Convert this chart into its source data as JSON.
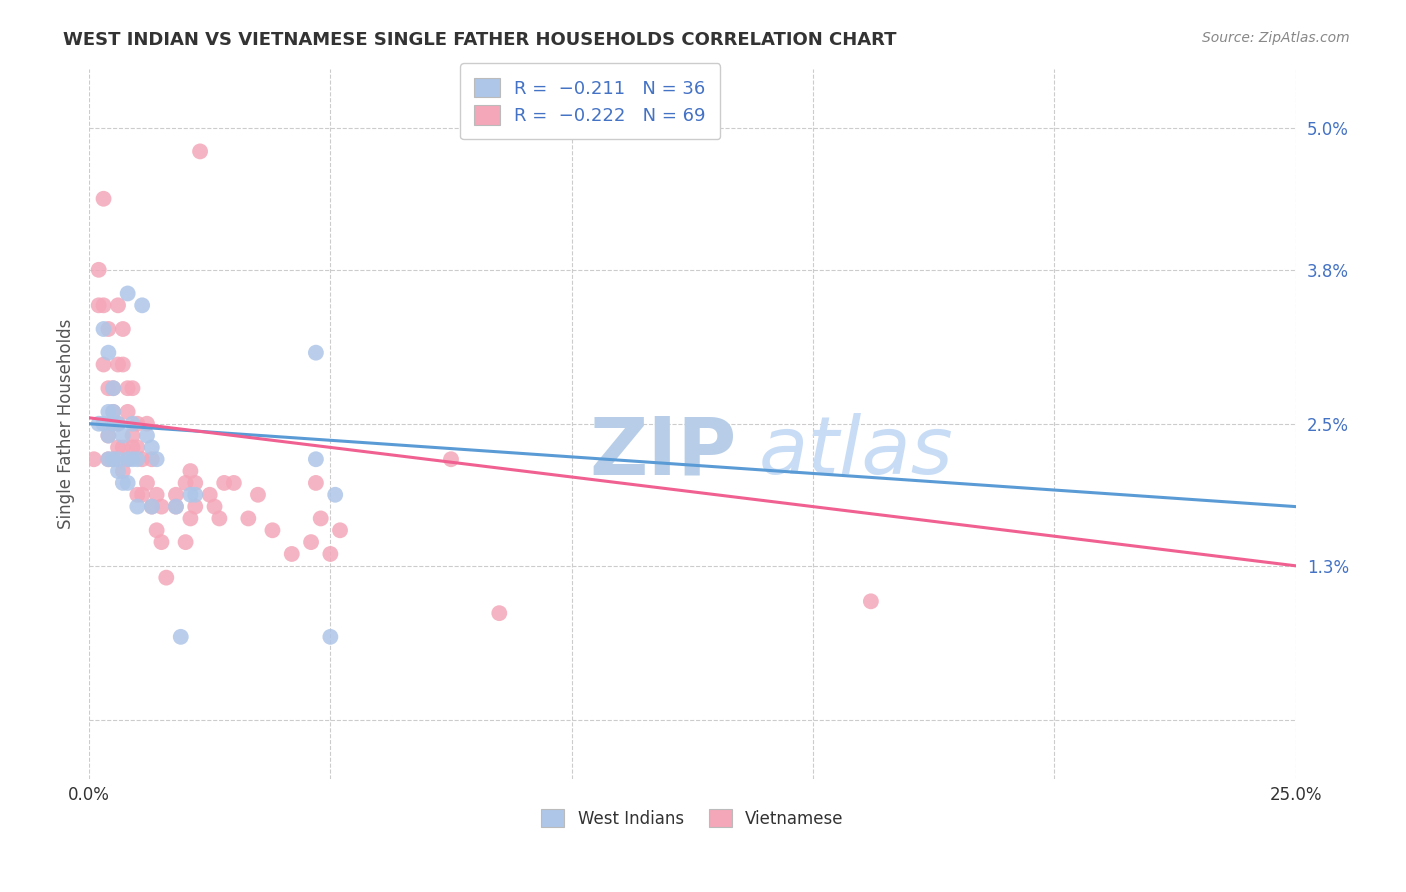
{
  "title": "WEST INDIAN VS VIETNAMESE SINGLE FATHER HOUSEHOLDS CORRELATION CHART",
  "source": "Source: ZipAtlas.com",
  "ylabel_label": "Single Father Households",
  "xlim": [
    0.0,
    0.25
  ],
  "ylim": [
    -0.005,
    0.055
  ],
  "background_color": "#ffffff",
  "grid_color": "#cccccc",
  "west_indian_color": "#aec6e8",
  "vietnamese_color": "#f4a7b9",
  "west_indian_line_color": "#5b9bd5",
  "vietnamese_line_color": "#f06090",
  "watermark_color": "#ccddf0",
  "west_indian_x": [
    0.002,
    0.003,
    0.003,
    0.004,
    0.004,
    0.004,
    0.004,
    0.005,
    0.005,
    0.005,
    0.005,
    0.006,
    0.006,
    0.006,
    0.007,
    0.007,
    0.008,
    0.008,
    0.008,
    0.009,
    0.009,
    0.01,
    0.01,
    0.011,
    0.012,
    0.013,
    0.013,
    0.014,
    0.018,
    0.019,
    0.021,
    0.022,
    0.047,
    0.047,
    0.05,
    0.051
  ],
  "west_indian_y": [
    0.025,
    0.033,
    0.025,
    0.022,
    0.024,
    0.026,
    0.031,
    0.022,
    0.025,
    0.026,
    0.028,
    0.021,
    0.022,
    0.025,
    0.02,
    0.024,
    0.02,
    0.022,
    0.036,
    0.022,
    0.025,
    0.018,
    0.022,
    0.035,
    0.024,
    0.018,
    0.023,
    0.022,
    0.018,
    0.007,
    0.019,
    0.019,
    0.031,
    0.022,
    0.007,
    0.019
  ],
  "vietnamese_x": [
    0.001,
    0.002,
    0.002,
    0.003,
    0.003,
    0.003,
    0.004,
    0.004,
    0.004,
    0.004,
    0.005,
    0.005,
    0.005,
    0.005,
    0.005,
    0.006,
    0.006,
    0.006,
    0.006,
    0.007,
    0.007,
    0.007,
    0.007,
    0.008,
    0.008,
    0.008,
    0.009,
    0.009,
    0.009,
    0.01,
    0.01,
    0.01,
    0.011,
    0.011,
    0.012,
    0.012,
    0.013,
    0.013,
    0.014,
    0.014,
    0.015,
    0.015,
    0.016,
    0.018,
    0.018,
    0.02,
    0.02,
    0.021,
    0.021,
    0.022,
    0.022,
    0.023,
    0.025,
    0.026,
    0.027,
    0.028,
    0.03,
    0.033,
    0.035,
    0.038,
    0.042,
    0.046,
    0.047,
    0.048,
    0.05,
    0.052,
    0.075,
    0.085,
    0.162
  ],
  "vietnamese_y": [
    0.022,
    0.038,
    0.035,
    0.044,
    0.035,
    0.03,
    0.033,
    0.028,
    0.024,
    0.022,
    0.025,
    0.028,
    0.022,
    0.026,
    0.025,
    0.035,
    0.03,
    0.023,
    0.025,
    0.033,
    0.03,
    0.023,
    0.021,
    0.028,
    0.026,
    0.022,
    0.024,
    0.023,
    0.028,
    0.025,
    0.023,
    0.019,
    0.022,
    0.019,
    0.025,
    0.02,
    0.022,
    0.018,
    0.019,
    0.016,
    0.018,
    0.015,
    0.012,
    0.019,
    0.018,
    0.02,
    0.015,
    0.017,
    0.021,
    0.02,
    0.018,
    0.048,
    0.019,
    0.018,
    0.017,
    0.02,
    0.02,
    0.017,
    0.019,
    0.016,
    0.014,
    0.015,
    0.02,
    0.017,
    0.014,
    0.016,
    0.022,
    0.009,
    0.01
  ],
  "wi_line_x0": 0.0,
  "wi_line_y0": 0.025,
  "wi_line_x1": 0.25,
  "wi_line_y1": 0.018,
  "vn_line_x0": 0.0,
  "vn_line_y0": 0.0255,
  "vn_line_x1": 0.25,
  "vn_line_y1": 0.013
}
